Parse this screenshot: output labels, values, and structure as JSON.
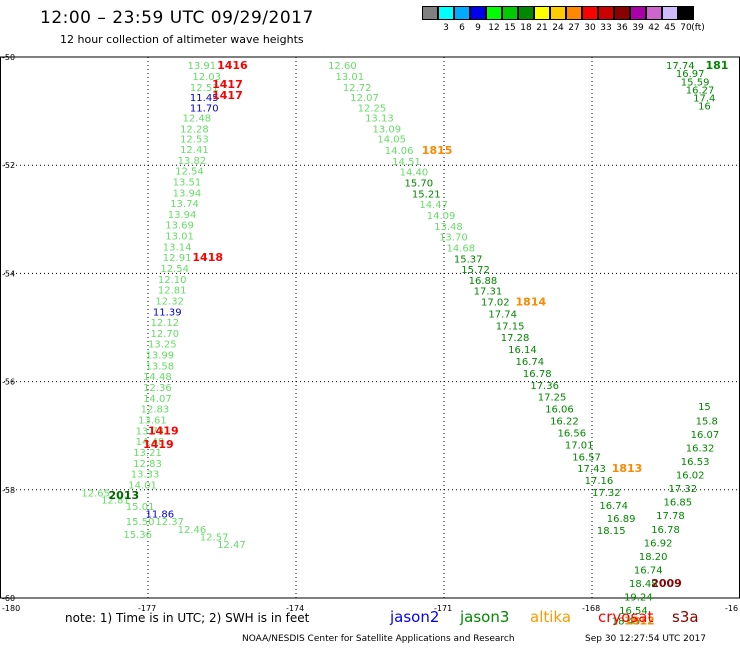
{
  "header": {
    "title": "12:00 – 23:59 UTC 09/29/2017",
    "subtitle": "12 hour collection of altimeter wave heights"
  },
  "legend": {
    "colors": [
      "#808080",
      "#00ffff",
      "#00aaff",
      "#0000ee",
      "#00ff00",
      "#00cc00",
      "#008800",
      "#ffff00",
      "#ffcc00",
      "#ff8800",
      "#ff0000",
      "#cc0000",
      "#880000",
      "#aa00aa",
      "#cc66cc",
      "#ccbbff",
      "#000000"
    ],
    "labels": [
      "3",
      "6",
      "9",
      "12",
      "15",
      "18",
      "21",
      "24",
      "27",
      "30",
      "33",
      "36",
      "39",
      "42",
      "45",
      "70",
      "(ft)"
    ]
  },
  "chart_data": {
    "type": "map",
    "x_ticks": [
      "-180",
      "-177",
      "-174",
      "-171",
      "-168",
      "-16"
    ],
    "y_ticks": [
      "-50",
      "-52",
      "-54",
      "-56",
      "-58",
      "-60"
    ],
    "grid": true,
    "observations": [
      {
        "t": "13.91",
        "x": -176.2,
        "y": -50.15,
        "c": "#66dd66"
      },
      {
        "t": "12.03",
        "x": -176.1,
        "y": -50.35,
        "c": "#66dd66"
      },
      {
        "t": "12.51",
        "x": -176.15,
        "y": -50.55,
        "c": "#66dd66"
      },
      {
        "t": "11.45",
        "x": -176.15,
        "y": -50.74,
        "c": "#0000cc"
      },
      {
        "t": "11.70",
        "x": -176.15,
        "y": -50.93,
        "c": "#0000cc"
      },
      {
        "t": "12.48",
        "x": -176.3,
        "y": -51.12,
        "c": "#66dd66"
      },
      {
        "t": "12.28",
        "x": -176.35,
        "y": -51.32,
        "c": "#66dd66"
      },
      {
        "t": "12.53",
        "x": -176.35,
        "y": -51.51,
        "c": "#66dd66"
      },
      {
        "t": "12.41",
        "x": -176.35,
        "y": -51.7,
        "c": "#66dd66"
      },
      {
        "t": "13.82",
        "x": -176.4,
        "y": -51.9,
        "c": "#66dd66"
      },
      {
        "t": "12.54",
        "x": -176.45,
        "y": -52.1,
        "c": "#66dd66"
      },
      {
        "t": "13.51",
        "x": -176.5,
        "y": -52.3,
        "c": "#66dd66"
      },
      {
        "t": "13.94",
        "x": -176.5,
        "y": -52.5,
        "c": "#66dd66"
      },
      {
        "t": "13.74",
        "x": -176.55,
        "y": -52.7,
        "c": "#66dd66"
      },
      {
        "t": "13.94",
        "x": -176.6,
        "y": -52.9,
        "c": "#66dd66"
      },
      {
        "t": "13.69",
        "x": -176.65,
        "y": -53.1,
        "c": "#66dd66"
      },
      {
        "t": "13.01",
        "x": -176.65,
        "y": -53.3,
        "c": "#66dd66"
      },
      {
        "t": "13.14",
        "x": -176.7,
        "y": -53.5,
        "c": "#66dd66"
      },
      {
        "t": "12.91",
        "x": -176.7,
        "y": -53.7,
        "c": "#66dd66"
      },
      {
        "t": "12.54",
        "x": -176.75,
        "y": -53.9,
        "c": "#66dd66"
      },
      {
        "t": "12.10",
        "x": -176.8,
        "y": -54.1,
        "c": "#66dd66"
      },
      {
        "t": "12.81",
        "x": -176.8,
        "y": -54.3,
        "c": "#66dd66"
      },
      {
        "t": "12.32",
        "x": -176.85,
        "y": -54.5,
        "c": "#66dd66"
      },
      {
        "t": "11.39",
        "x": -176.9,
        "y": -54.7,
        "c": "#0000cc"
      },
      {
        "t": "12.12",
        "x": -176.95,
        "y": -54.9,
        "c": "#66dd66"
      },
      {
        "t": "12.70",
        "x": -176.95,
        "y": -55.1,
        "c": "#66dd66"
      },
      {
        "t": "13.25",
        "x": -177.0,
        "y": -55.3,
        "c": "#66dd66"
      },
      {
        "t": "13.99",
        "x": -177.05,
        "y": -55.5,
        "c": "#66dd66"
      },
      {
        "t": "13.58",
        "x": -177.05,
        "y": -55.7,
        "c": "#66dd66"
      },
      {
        "t": "14.48",
        "x": -177.1,
        "y": -55.9,
        "c": "#66dd66"
      },
      {
        "t": "12.36",
        "x": -177.1,
        "y": -56.1,
        "c": "#66dd66"
      },
      {
        "t": "14.07",
        "x": -177.1,
        "y": -56.3,
        "c": "#66dd66"
      },
      {
        "t": "12.83",
        "x": -177.15,
        "y": -56.5,
        "c": "#66dd66"
      },
      {
        "t": "13.61",
        "x": -177.2,
        "y": -56.7,
        "c": "#66dd66"
      },
      {
        "t": "13.73",
        "x": -177.25,
        "y": -56.9,
        "c": "#66dd66"
      },
      {
        "t": "14.48",
        "x": -177.25,
        "y": -57.1,
        "c": "#66dd66"
      },
      {
        "t": "13.21",
        "x": -177.3,
        "y": -57.3,
        "c": "#66dd66"
      },
      {
        "t": "12.83",
        "x": -177.3,
        "y": -57.5,
        "c": "#66dd66"
      },
      {
        "t": "13.33",
        "x": -177.35,
        "y": -57.7,
        "c": "#66dd66"
      },
      {
        "t": "14.01",
        "x": -177.4,
        "y": -57.9,
        "c": "#66dd66"
      },
      {
        "t": "12.65",
        "x": -178.35,
        "y": -58.05,
        "c": "#66dd66"
      },
      {
        "t": "12.81",
        "x": -177.95,
        "y": -58.18,
        "c": "#66dd66"
      },
      {
        "t": "15.01",
        "x": -177.45,
        "y": -58.3,
        "c": "#66dd66"
      },
      {
        "t": "11.86",
        "x": -177.05,
        "y": -58.44,
        "c": "#0000cc"
      },
      {
        "t": "15.50",
        "x": -177.45,
        "y": -58.58,
        "c": "#66dd66"
      },
      {
        "t": "12.37",
        "x": -176.85,
        "y": -58.58,
        "c": "#66dd66"
      },
      {
        "t": "15.36",
        "x": -177.5,
        "y": -58.82,
        "c": "#66dd66"
      },
      {
        "t": "12.46",
        "x": -176.4,
        "y": -58.72,
        "c": "#66dd66"
      },
      {
        "t": "12.57",
        "x": -175.95,
        "y": -58.86,
        "c": "#66dd66"
      },
      {
        "t": "12.47",
        "x": -175.6,
        "y": -59.0,
        "c": "#66dd66"
      },
      {
        "t": "12.60",
        "x": -173.35,
        "y": -50.15,
        "c": "#66dd66"
      },
      {
        "t": "13.01",
        "x": -173.2,
        "y": -50.35,
        "c": "#66dd66"
      },
      {
        "t": "12.72",
        "x": -173.05,
        "y": -50.55,
        "c": "#66dd66"
      },
      {
        "t": "12.07",
        "x": -172.9,
        "y": -50.74,
        "c": "#66dd66"
      },
      {
        "t": "12.25",
        "x": -172.75,
        "y": -50.93,
        "c": "#66dd66"
      },
      {
        "t": "13.13",
        "x": -172.6,
        "y": -51.12,
        "c": "#66dd66"
      },
      {
        "t": "13.09",
        "x": -172.45,
        "y": -51.32,
        "c": "#66dd66"
      },
      {
        "t": "14.05",
        "x": -172.35,
        "y": -51.51,
        "c": "#66dd66"
      },
      {
        "t": "14.06",
        "x": -172.2,
        "y": -51.72,
        "c": "#66dd66"
      },
      {
        "t": "14.51",
        "x": -172.05,
        "y": -51.92,
        "c": "#66dd66"
      },
      {
        "t": "14.40",
        "x": -171.9,
        "y": -52.12,
        "c": "#66dd66"
      },
      {
        "t": "15.70",
        "x": -171.8,
        "y": -52.32,
        "c": "#008800"
      },
      {
        "t": "15.21",
        "x": -171.65,
        "y": -52.52,
        "c": "#008800"
      },
      {
        "t": "14.47",
        "x": -171.5,
        "y": -52.72,
        "c": "#66dd66"
      },
      {
        "t": "14.09",
        "x": -171.35,
        "y": -52.92,
        "c": "#66dd66"
      },
      {
        "t": "13.48",
        "x": -171.2,
        "y": -53.12,
        "c": "#66dd66"
      },
      {
        "t": "13.70",
        "x": -171.1,
        "y": -53.32,
        "c": "#66dd66"
      },
      {
        "t": "14.68",
        "x": -170.95,
        "y": -53.52,
        "c": "#66dd66"
      },
      {
        "t": "15.37",
        "x": -170.8,
        "y": -53.72,
        "c": "#008800"
      },
      {
        "t": "15.72",
        "x": -170.65,
        "y": -53.92,
        "c": "#008800"
      },
      {
        "t": "16.88",
        "x": -170.5,
        "y": -54.12,
        "c": "#008800"
      },
      {
        "t": "17.31",
        "x": -170.4,
        "y": -54.32,
        "c": "#008800"
      },
      {
        "t": "17.02",
        "x": -170.25,
        "y": -54.52,
        "c": "#008800"
      },
      {
        "t": "17.74",
        "x": -170.1,
        "y": -54.74,
        "c": "#008800"
      },
      {
        "t": "17.15",
        "x": -169.95,
        "y": -54.96,
        "c": "#008800"
      },
      {
        "t": "17.28",
        "x": -169.85,
        "y": -55.18,
        "c": "#008800"
      },
      {
        "t": "16.14",
        "x": -169.7,
        "y": -55.4,
        "c": "#008800"
      },
      {
        "t": "16.74",
        "x": -169.55,
        "y": -55.62,
        "c": "#008800"
      },
      {
        "t": "16.78",
        "x": -169.4,
        "y": -55.84,
        "c": "#008800"
      },
      {
        "t": "17.36",
        "x": -169.25,
        "y": -56.06,
        "c": "#008800"
      },
      {
        "t": "17.25",
        "x": -169.1,
        "y": -56.28,
        "c": "#008800"
      },
      {
        "t": "16.06",
        "x": -168.95,
        "y": -56.5,
        "c": "#008800"
      },
      {
        "t": "16.22",
        "x": -168.85,
        "y": -56.72,
        "c": "#008800"
      },
      {
        "t": "16.56",
        "x": -168.7,
        "y": -56.94,
        "c": "#008800"
      },
      {
        "t": "17.01",
        "x": -168.55,
        "y": -57.16,
        "c": "#008800"
      },
      {
        "t": "16.57",
        "x": -168.4,
        "y": -57.38,
        "c": "#008800"
      },
      {
        "t": "17.43",
        "x": -168.3,
        "y": -57.6,
        "c": "#008800"
      },
      {
        "t": "17.16",
        "x": -168.15,
        "y": -57.82,
        "c": "#008800"
      },
      {
        "t": "17.32",
        "x": -168.0,
        "y": -58.04,
        "c": "#008800"
      },
      {
        "t": "16.74",
        "x": -167.85,
        "y": -58.28,
        "c": "#008800"
      },
      {
        "t": "16.89",
        "x": -167.7,
        "y": -58.52,
        "c": "#008800"
      },
      {
        "t": "18.15",
        "x": -167.9,
        "y": -58.74,
        "c": "#008800"
      },
      {
        "t": "17.74",
        "x": -166.5,
        "y": -50.15,
        "c": "#008800"
      },
      {
        "t": "16.97",
        "x": -166.3,
        "y": -50.3,
        "c": "#008800"
      },
      {
        "t": "15.59",
        "x": -166.2,
        "y": -50.45,
        "c": "#008800"
      },
      {
        "t": "16.27",
        "x": -166.1,
        "y": -50.6,
        "c": "#008800"
      },
      {
        "t": "17.4",
        "x": -165.95,
        "y": -50.75,
        "c": "#008800"
      },
      {
        "t": "16",
        "x": -165.85,
        "y": -50.9,
        "c": "#008800"
      },
      {
        "t": "15",
        "x": -165.85,
        "y": -56.45,
        "c": "#008800"
      },
      {
        "t": "15.8",
        "x": -165.9,
        "y": -56.72,
        "c": "#008800"
      },
      {
        "t": "16.07",
        "x": -166.0,
        "y": -56.97,
        "c": "#008800"
      },
      {
        "t": "16.32",
        "x": -166.1,
        "y": -57.22,
        "c": "#008800"
      },
      {
        "t": "16.53",
        "x": -166.2,
        "y": -57.47,
        "c": "#008800"
      },
      {
        "t": "16.02",
        "x": -166.3,
        "y": -57.72,
        "c": "#008800"
      },
      {
        "t": "17.32",
        "x": -166.45,
        "y": -57.97,
        "c": "#008800"
      },
      {
        "t": "16.85",
        "x": -166.55,
        "y": -58.22,
        "c": "#008800"
      },
      {
        "t": "17.78",
        "x": -166.7,
        "y": -58.47,
        "c": "#008800"
      },
      {
        "t": "16.78",
        "x": -166.8,
        "y": -58.72,
        "c": "#008800"
      },
      {
        "t": "16.92",
        "x": -166.95,
        "y": -58.97,
        "c": "#008800"
      },
      {
        "t": "18.20",
        "x": -167.05,
        "y": -59.22,
        "c": "#008800"
      },
      {
        "t": "16.74",
        "x": -167.15,
        "y": -59.47,
        "c": "#008800"
      },
      {
        "t": "18.48",
        "x": -167.25,
        "y": -59.72,
        "c": "#008800"
      },
      {
        "t": "19.24",
        "x": -167.35,
        "y": -59.97,
        "c": "#008800"
      },
      {
        "t": "16.54",
        "x": -167.45,
        "y": -60.22,
        "c": "#008800"
      },
      {
        "t": "18.45",
        "x": -167.6,
        "y": -60.42,
        "c": "#008800"
      }
    ],
    "pass_labels": [
      {
        "t": "1416",
        "x": -175.6,
        "y": -50.15,
        "c": "#ff0000"
      },
      {
        "t": "1417",
        "x": -175.7,
        "y": -50.5,
        "c": "#ff0000"
      },
      {
        "t": "1417",
        "x": -175.7,
        "y": -50.7,
        "c": "#ff0000"
      },
      {
        "t": "1418",
        "x": -176.1,
        "y": -53.7,
        "c": "#ff0000"
      },
      {
        "t": "1419",
        "x": -177.0,
        "y": -56.9,
        "c": "#ff0000"
      },
      {
        "t": "1419",
        "x": -177.1,
        "y": -57.15,
        "c": "#ff0000"
      },
      {
        "t": "2013",
        "x": -177.8,
        "y": -58.1,
        "c": "#006600"
      },
      {
        "t": "1815",
        "x": -171.45,
        "y": -51.72,
        "c": "#ff8800"
      },
      {
        "t": "1814",
        "x": -169.55,
        "y": -54.52,
        "c": "#ff8800"
      },
      {
        "t": "1813",
        "x": -167.6,
        "y": -57.6,
        "c": "#ff8800"
      },
      {
        "t": "2009",
        "x": -166.8,
        "y": -59.72,
        "c": "#880000"
      },
      {
        "t": "1812",
        "x": -167.35,
        "y": -60.42,
        "c": "#ff8800"
      },
      {
        "t": "181",
        "x": -165.7,
        "y": -50.15,
        "c": "#008800"
      }
    ]
  },
  "footer": {
    "note": "note:  1) Time is in UTC;  2) SWH is in feet",
    "satellites": [
      {
        "name": "jason2",
        "color": "#0000ff"
      },
      {
        "name": "jason3",
        "color": "#008800"
      },
      {
        "name": "altika",
        "color": "#ff9900"
      },
      {
        "name": "cryosat",
        "color": "#ff0000"
      },
      {
        "name": "s3a",
        "color": "#880000"
      }
    ],
    "credit": "NOAA/NESDIS Center for Satellite Applications and Research",
    "timestamp": "Sep 30 12:27:54 UTC 2017"
  }
}
